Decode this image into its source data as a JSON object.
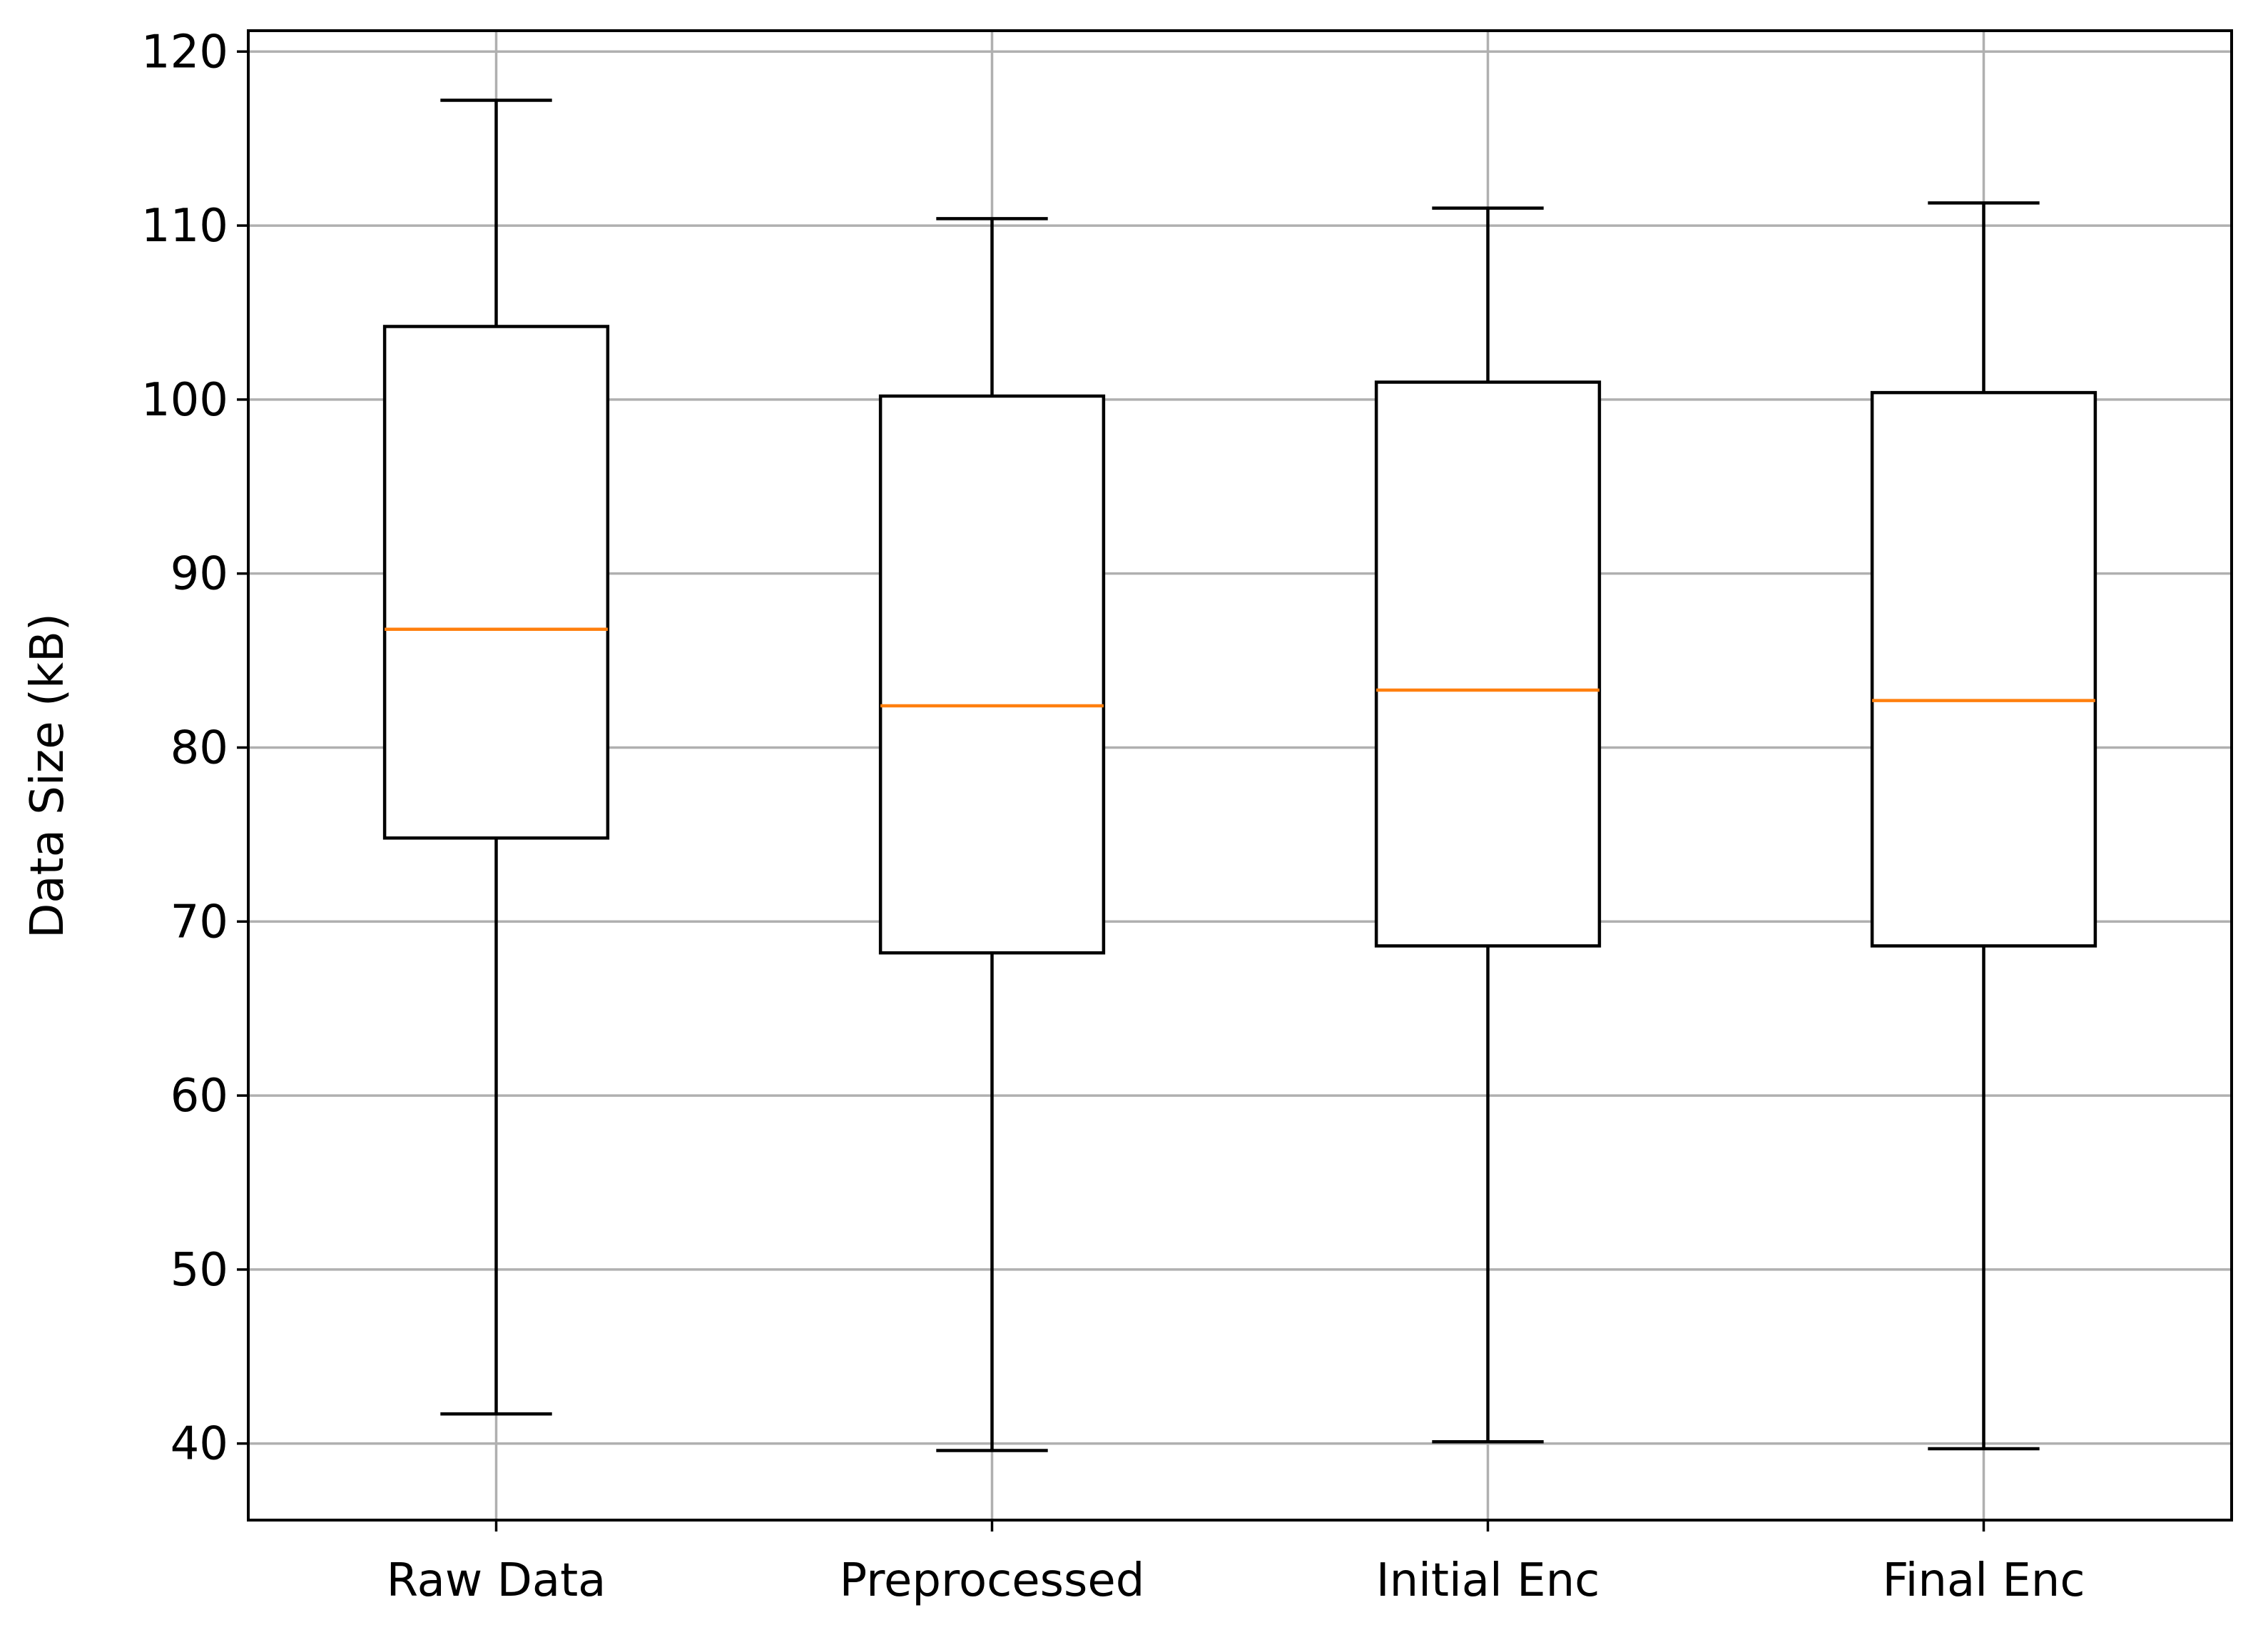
{
  "chart_data": {
    "type": "box",
    "title": "",
    "xlabel": "",
    "ylabel": "Data Size (kB)",
    "ylim": [
      35.6,
      121.2
    ],
    "yticks": [
      40,
      50,
      60,
      70,
      80,
      90,
      100,
      110,
      120
    ],
    "grid": true,
    "categories": [
      "Raw Data",
      "Preprocessed",
      "Initial Enc",
      "Final Enc"
    ],
    "boxes": [
      {
        "whisker_low": 41.7,
        "q1": 74.8,
        "median": 86.8,
        "q3": 104.2,
        "whisker_high": 117.2
      },
      {
        "whisker_low": 39.6,
        "q1": 68.2,
        "median": 82.4,
        "q3": 100.2,
        "whisker_high": 110.4
      },
      {
        "whisker_low": 40.1,
        "q1": 68.6,
        "median": 83.3,
        "q3": 101.0,
        "whisker_high": 111.0
      },
      {
        "whisker_low": 39.7,
        "q1": 68.6,
        "median": 82.7,
        "q3": 100.4,
        "whisker_high": 111.3
      }
    ],
    "colors": {
      "box": "#000000",
      "median": "#ff7f0e",
      "grid": "#b0b0b0"
    }
  }
}
